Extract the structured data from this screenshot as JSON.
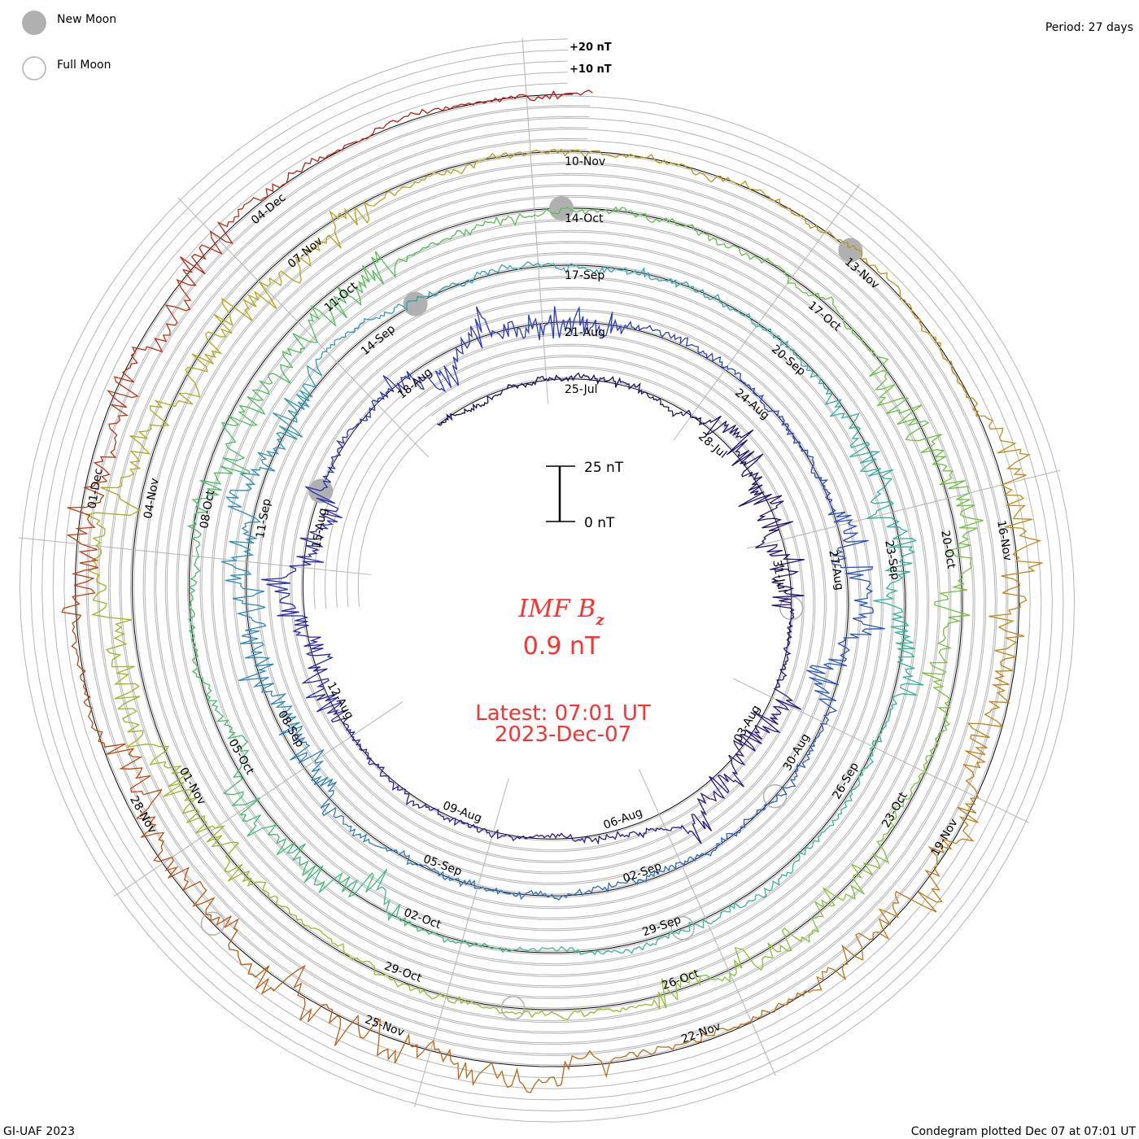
{
  "legend": {
    "new_moon_label": "New Moon",
    "full_moon_label": "Full Moon",
    "new_moon_color": "#b0b0b0",
    "full_moon_color": "#b0b0b0"
  },
  "period_label": "Period: 27 days",
  "ring_labels": {
    "plus20": "+20 nT",
    "plus10": "+10 nT"
  },
  "scale_bar": {
    "top_label": "25 nT",
    "bottom_label": "0 nT",
    "span_nT": 25
  },
  "title": {
    "main": "IMF B",
    "subscript": "z",
    "value": "0.9 nT",
    "latest": "Latest: 07:01 UT",
    "date": "2023-Dec-07",
    "color": "#ff3030"
  },
  "footer": {
    "left": "GI-UAF 2023",
    "right": "Condegram plotted Dec 07 at 07:01 UT"
  },
  "chart_data": {
    "type": "line",
    "subtype": "condegram-spiral",
    "title": "IMF Bz",
    "units": "nT",
    "period_days": 27,
    "direction": "clockwise",
    "day0_label": "25-Jul",
    "start_day": -2.7,
    "end_day": 135.29,
    "latest_value": 0.9,
    "ring_step_nT": 5,
    "date_label_step_days": 3,
    "date_labels": [
      "25-Jul",
      "28-Jul",
      "31-Jul",
      "03-Aug",
      "06-Aug",
      "09-Aug",
      "12-Aug",
      "15-Aug",
      "18-Aug",
      "21-Aug",
      "24-Aug",
      "27-Aug",
      "30-Aug",
      "02-Sep",
      "05-Sep",
      "08-Sep",
      "11-Sep",
      "14-Sep",
      "17-Sep",
      "20-Sep",
      "23-Sep",
      "26-Sep",
      "29-Sep",
      "02-Oct",
      "05-Oct",
      "08-Oct",
      "11-Oct",
      "14-Oct",
      "17-Oct",
      "20-Oct",
      "23-Oct",
      "26-Oct",
      "29-Oct",
      "01-Nov",
      "04-Nov",
      "07-Nov",
      "10-Nov",
      "13-Nov",
      "16-Nov",
      "19-Nov",
      "22-Nov",
      "25-Nov",
      "28-Nov",
      "01-Dec",
      "04-Dec"
    ],
    "new_moons_day": [
      22,
      52,
      81,
      111
    ],
    "full_moons_day": [
      7,
      37,
      66,
      95,
      125
    ],
    "color_stops": [
      {
        "day": -3,
        "color": "#1a0a50"
      },
      {
        "day": 15,
        "color": "#2a1aa0"
      },
      {
        "day": 30,
        "color": "#2a40c8"
      },
      {
        "day": 45,
        "color": "#2a80c0"
      },
      {
        "day": 55,
        "color": "#30a8b0"
      },
      {
        "day": 65,
        "color": "#30b890"
      },
      {
        "day": 80,
        "color": "#50c050"
      },
      {
        "day": 95,
        "color": "#90c030"
      },
      {
        "day": 105,
        "color": "#b0a818"
      },
      {
        "day": 115,
        "color": "#c08818"
      },
      {
        "day": 125,
        "color": "#c05810"
      },
      {
        "day": 136,
        "color": "#c01010"
      }
    ]
  }
}
